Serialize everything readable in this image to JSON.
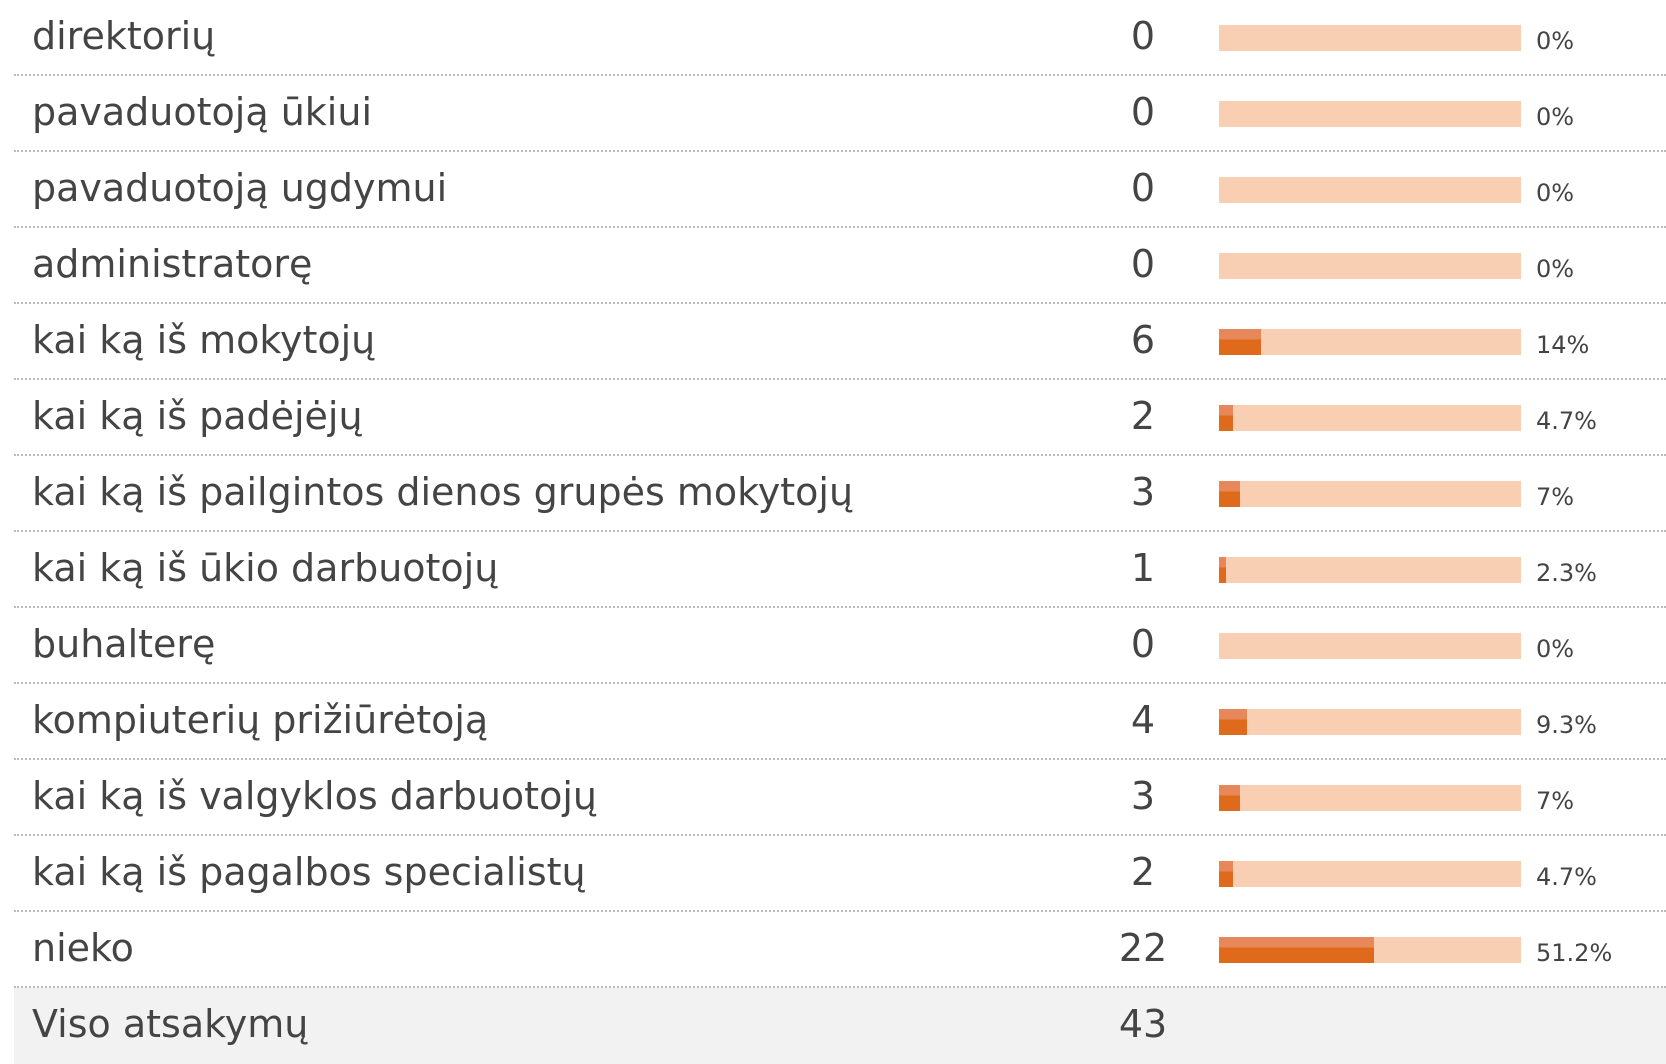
{
  "table": {
    "rows": [
      {
        "label": "direktorių",
        "count": 0,
        "percent": 0,
        "percent_label": "0%"
      },
      {
        "label": "pavaduotoją ūkiui",
        "count": 0,
        "percent": 0,
        "percent_label": "0%"
      },
      {
        "label": "pavaduotoją ugdymui",
        "count": 0,
        "percent": 0,
        "percent_label": "0%"
      },
      {
        "label": "administratorę",
        "count": 0,
        "percent": 0,
        "percent_label": "0%"
      },
      {
        "label": "kai ką iš mokytojų",
        "count": 6,
        "percent": 14,
        "percent_label": "14%"
      },
      {
        "label": "kai ką iš padėjėjų",
        "count": 2,
        "percent": 4.7,
        "percent_label": "4.7%"
      },
      {
        "label": "kai ką iš pailgintos dienos grupės mokytojų",
        "count": 3,
        "percent": 7,
        "percent_label": "7%"
      },
      {
        "label": "kai ką iš ūkio darbuotojų",
        "count": 1,
        "percent": 2.3,
        "percent_label": "2.3%"
      },
      {
        "label": "buhalterę",
        "count": 0,
        "percent": 0,
        "percent_label": "0%"
      },
      {
        "label": "kompiuterių prižiūrėtoją",
        "count": 4,
        "percent": 9.3,
        "percent_label": "9.3%"
      },
      {
        "label": "kai ką iš valgyklos darbuotojų",
        "count": 3,
        "percent": 7,
        "percent_label": "7%"
      },
      {
        "label": "kai ką iš pagalbos specialistų",
        "count": 2,
        "percent": 4.7,
        "percent_label": "4.7%"
      },
      {
        "label": "nieko",
        "count": 22,
        "percent": 51.2,
        "percent_label": "51.2%"
      }
    ],
    "total": {
      "label": "Viso atsakymų",
      "count": 43
    }
  }
}
